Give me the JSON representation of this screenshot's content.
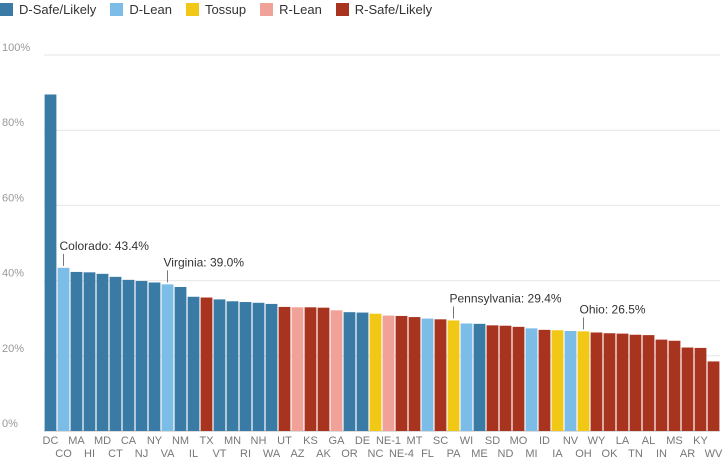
{
  "chart_data": {
    "type": "bar",
    "title": "",
    "xlabel": "",
    "ylabel": "",
    "ylim": [
      0,
      100
    ],
    "yticks": [
      "0%",
      "20%",
      "40%",
      "60%",
      "80%",
      "100%"
    ],
    "yticks_values": [
      0,
      20,
      40,
      60,
      80,
      100
    ],
    "grid": true,
    "legend_position": "top-left",
    "legend": [
      {
        "label": "D-Safe/Likely",
        "color": "#3a7ba6"
      },
      {
        "label": "D-Lean",
        "color": "#7bbde6"
      },
      {
        "label": "Tossup",
        "color": "#f2c817"
      },
      {
        "label": "R-Lean",
        "color": "#f0a299"
      },
      {
        "label": "R-Safe/Likely",
        "color": "#a8341f"
      }
    ],
    "categories": [
      "DC",
      "CO",
      "MA",
      "HI",
      "MD",
      "CT",
      "CA",
      "NJ",
      "NY",
      "VA",
      "NM",
      "IL",
      "TX",
      "VT",
      "MN",
      "RI",
      "NH",
      "WA",
      "UT",
      "AZ",
      "KS",
      "AK",
      "GA",
      "OR",
      "DE",
      "NC",
      "NE-1",
      "NE-4",
      "MT",
      "FL",
      "SC",
      "PA",
      "WI",
      "ME",
      "SD",
      "ND",
      "MO",
      "MI",
      "ID",
      "IA",
      "NV",
      "OH",
      "WY",
      "OK",
      "LA",
      "TN",
      "AL",
      "IN",
      "MS",
      "AR",
      "KY",
      "WV"
    ],
    "values": [
      89.5,
      43.4,
      42.3,
      42.2,
      41.8,
      41.0,
      40.2,
      39.9,
      39.5,
      39.0,
      38.3,
      35.7,
      35.5,
      35.0,
      34.5,
      34.3,
      34.1,
      33.8,
      33.0,
      32.9,
      32.9,
      32.8,
      32.1,
      31.6,
      31.5,
      31.2,
      30.7,
      30.6,
      30.3,
      29.9,
      29.7,
      29.4,
      28.6,
      28.5,
      28.1,
      28.0,
      27.7,
      27.3,
      26.9,
      26.8,
      26.6,
      26.5,
      26.2,
      26.0,
      25.9,
      25.6,
      25.5,
      24.3,
      24.0,
      22.2,
      22.1,
      18.5
    ],
    "ratings": [
      "D-Safe/Likely",
      "D-Lean",
      "D-Safe/Likely",
      "D-Safe/Likely",
      "D-Safe/Likely",
      "D-Safe/Likely",
      "D-Safe/Likely",
      "D-Safe/Likely",
      "D-Safe/Likely",
      "D-Lean",
      "D-Safe/Likely",
      "D-Safe/Likely",
      "R-Safe/Likely",
      "D-Safe/Likely",
      "D-Safe/Likely",
      "D-Safe/Likely",
      "D-Safe/Likely",
      "D-Safe/Likely",
      "R-Safe/Likely",
      "R-Lean",
      "R-Safe/Likely",
      "R-Safe/Likely",
      "R-Lean",
      "D-Safe/Likely",
      "D-Safe/Likely",
      "Tossup",
      "R-Lean",
      "R-Safe/Likely",
      "R-Safe/Likely",
      "D-Lean",
      "R-Safe/Likely",
      "Tossup",
      "D-Lean",
      "D-Safe/Likely",
      "R-Safe/Likely",
      "R-Safe/Likely",
      "R-Safe/Likely",
      "D-Lean",
      "R-Safe/Likely",
      "Tossup",
      "D-Lean",
      "Tossup",
      "R-Safe/Likely",
      "R-Safe/Likely",
      "R-Safe/Likely",
      "R-Safe/Likely",
      "R-Safe/Likely",
      "R-Safe/Likely",
      "R-Safe/Likely",
      "R-Safe/Likely",
      "R-Safe/Likely",
      "R-Safe/Likely"
    ],
    "annotations": [
      {
        "category": "CO",
        "text": "Colorado: 43.4%"
      },
      {
        "category": "VA",
        "text": "Virginia: 39.0%"
      },
      {
        "category": "PA",
        "text": "Pennsylvania: 29.4%"
      },
      {
        "category": "OH",
        "text": "Ohio: 26.5%"
      }
    ]
  }
}
